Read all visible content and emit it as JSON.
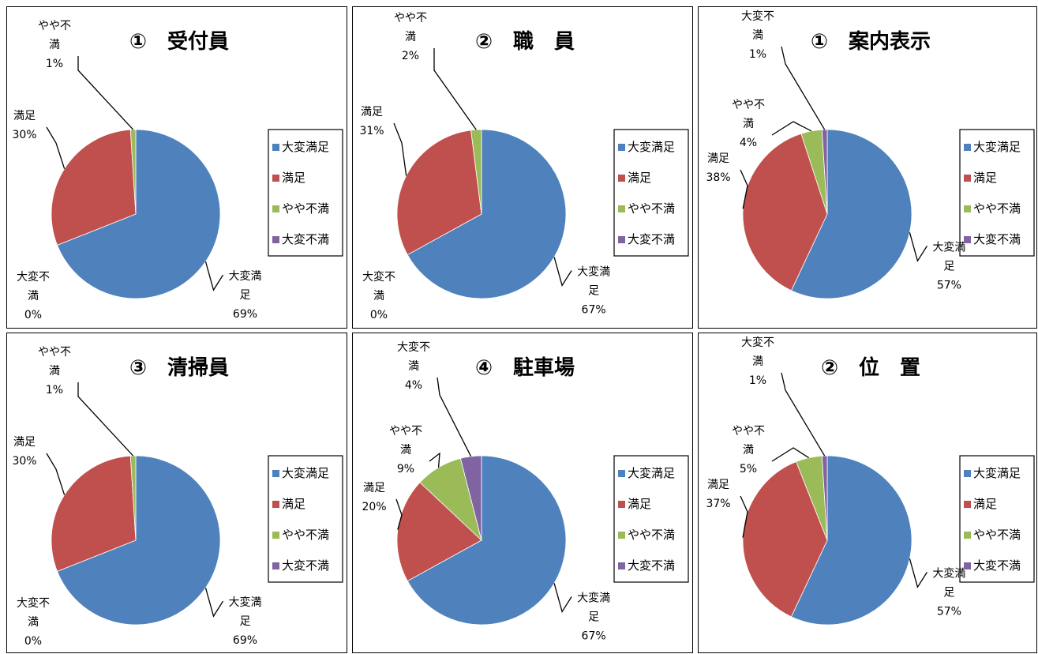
{
  "colors": {
    "大変満足": "#4F81BD",
    "満足": "#C0504D",
    "やや不満": "#9BBB59",
    "大変不満": "#8064A2"
  },
  "legend": [
    "大変満足",
    "満足",
    "やや不満",
    "大変不満"
  ],
  "chart_data": [
    {
      "type": "pie",
      "title": "①　受付員",
      "categories": [
        "大変満足",
        "満足",
        "やや不満",
        "大変不満"
      ],
      "values": [
        69,
        30,
        1,
        0
      ],
      "labels": [
        {
          "name": [
            "大変満",
            "足"
          ],
          "pct": "69%"
        },
        {
          "name": [
            "満足"
          ],
          "pct": "30%"
        },
        {
          "name": [
            "やや不",
            "満"
          ],
          "pct": "1%"
        },
        {
          "name": [
            "大変不",
            "満"
          ],
          "pct": "0%"
        }
      ]
    },
    {
      "type": "pie",
      "title": "②　職　員",
      "categories": [
        "大変満足",
        "満足",
        "やや不満",
        "大変不満"
      ],
      "values": [
        67,
        31,
        2,
        0
      ],
      "labels": [
        {
          "name": [
            "大変満",
            "足"
          ],
          "pct": "67%"
        },
        {
          "name": [
            "満足"
          ],
          "pct": "31%"
        },
        {
          "name": [
            "やや不",
            "満"
          ],
          "pct": "2%"
        },
        {
          "name": [
            "大変不",
            "満"
          ],
          "pct": "0%"
        }
      ]
    },
    {
      "type": "pie",
      "title": "①　案内表示",
      "categories": [
        "大変満足",
        "満足",
        "やや不満",
        "大変不満"
      ],
      "values": [
        57,
        38,
        4,
        1
      ],
      "labels": [
        {
          "name": [
            "大変満",
            "足"
          ],
          "pct": "57%"
        },
        {
          "name": [
            "満足"
          ],
          "pct": "38%"
        },
        {
          "name": [
            "やや不",
            "満"
          ],
          "pct": "4%"
        },
        {
          "name": [
            "大変不",
            "満"
          ],
          "pct": "1%"
        }
      ]
    },
    {
      "type": "pie",
      "title": "③　清掃員",
      "categories": [
        "大変満足",
        "満足",
        "やや不満",
        "大変不満"
      ],
      "values": [
        69,
        30,
        1,
        0
      ],
      "labels": [
        {
          "name": [
            "大変満",
            "足"
          ],
          "pct": "69%"
        },
        {
          "name": [
            "満足"
          ],
          "pct": "30%"
        },
        {
          "name": [
            "やや不",
            "満"
          ],
          "pct": "1%"
        },
        {
          "name": [
            "大変不",
            "満"
          ],
          "pct": "0%"
        }
      ]
    },
    {
      "type": "pie",
      "title": "④　駐車場",
      "categories": [
        "大変満足",
        "満足",
        "やや不満",
        "大変不満"
      ],
      "values": [
        67,
        20,
        9,
        4
      ],
      "labels": [
        {
          "name": [
            "大変満",
            "足"
          ],
          "pct": "67%"
        },
        {
          "name": [
            "満足"
          ],
          "pct": "20%"
        },
        {
          "name": [
            "やや不",
            "満"
          ],
          "pct": "9%"
        },
        {
          "name": [
            "大変不",
            "満"
          ],
          "pct": "4%"
        }
      ]
    },
    {
      "type": "pie",
      "title": "②　位　置",
      "categories": [
        "大変満足",
        "満足",
        "やや不満",
        "大変不満"
      ],
      "values": [
        57,
        37,
        5,
        1
      ],
      "labels": [
        {
          "name": [
            "大変満",
            "足"
          ],
          "pct": "57%"
        },
        {
          "name": [
            "満足"
          ],
          "pct": "37%"
        },
        {
          "name": [
            "やや不",
            "満"
          ],
          "pct": "5%"
        },
        {
          "name": [
            "大変不",
            "満"
          ],
          "pct": "1%"
        }
      ]
    }
  ]
}
